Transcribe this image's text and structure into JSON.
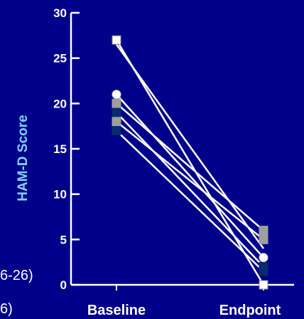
{
  "chart_data": {
    "type": "line",
    "ylabel": "HAM-D Score",
    "categories": [
      "Baseline",
      "Endpoint"
    ],
    "ylim": [
      0,
      30
    ],
    "yticks": [
      0,
      5,
      10,
      15,
      20,
      25,
      30
    ],
    "series": [
      {
        "values": [
          27,
          0
        ],
        "marker": "square-white"
      },
      {
        "values": [
          26.5,
          4
        ],
        "marker": "none"
      },
      {
        "values": [
          21,
          3
        ],
        "marker": "circle-white"
      },
      {
        "values": [
          20,
          6
        ],
        "marker": "square-gray"
      },
      {
        "values": [
          19,
          2
        ],
        "marker": "square-navy"
      },
      {
        "values": [
          18,
          5
        ],
        "marker": "square-gray"
      },
      {
        "values": [
          17,
          1.5
        ],
        "marker": "square-navy"
      }
    ],
    "colors": {
      "background": "#00008b",
      "lines": "#ffffff",
      "ylabel": "#7fd4ff",
      "marker_gray": "#9e9e9e",
      "marker_navy": "#0a2a6e"
    }
  },
  "cut_text": [
    "6-26)",
    "6)"
  ]
}
